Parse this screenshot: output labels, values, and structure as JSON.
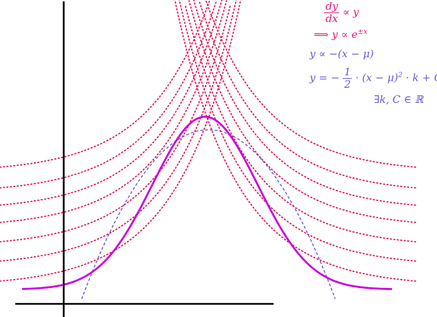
{
  "colors": {
    "axes": "#000000",
    "exponential_curves": "#e6195a",
    "parabola": "#5a55dd",
    "bell_curve": "#cc00e0",
    "pink_text": "#e6197a",
    "blue_text": "#6a5ad8"
  },
  "equations": {
    "line1_num": "dy",
    "line1_den": "dx",
    "line1_rest": "∝ y",
    "line2_implies": "⟹",
    "line2_expr": "y ∝ e",
    "line2_sup": "±x",
    "line3": "y ∝ −(x − μ)",
    "line4_lhs": "y = −",
    "line4_num": "1",
    "line4_den": "2",
    "line4_rest": "· (x − μ)",
    "line4_sup": "2",
    "line4_tail": "· k + C,",
    "line5": "∃k, C ∈ ℝ"
  }
}
